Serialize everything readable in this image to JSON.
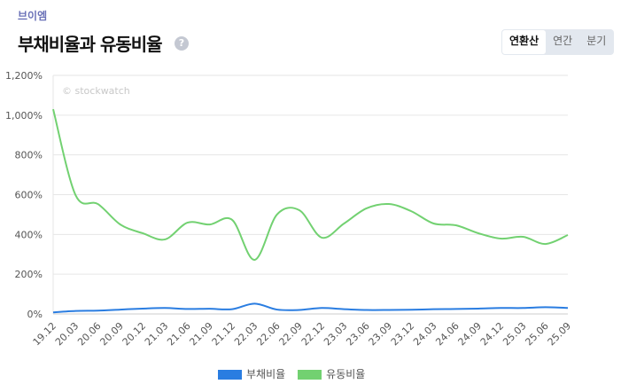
{
  "header": {
    "company": "브이엠",
    "title": "부채비율과 유동비율",
    "help_icon": "?"
  },
  "period_tabs": [
    {
      "label": "연환산",
      "active": true
    },
    {
      "label": "연간",
      "active": false
    },
    {
      "label": "분기",
      "active": false
    }
  ],
  "chart_data": {
    "type": "line",
    "watermark": "© stockwatch",
    "categories": [
      "19.12",
      "20.03",
      "20.06",
      "20.09",
      "20.12",
      "21.03",
      "21.06",
      "21.09",
      "21.12",
      "22.03",
      "22.06",
      "22.09",
      "22.12",
      "23.03",
      "23.06",
      "23.09",
      "23.12",
      "24.03",
      "24.06",
      "24.09",
      "24.12",
      "25.03",
      "25.06",
      "25.09"
    ],
    "ylim": [
      0,
      1200
    ],
    "yticks": [
      0,
      200,
      400,
      600,
      800,
      1000,
      1200
    ],
    "ytick_labels": [
      "0%",
      "200%",
      "400%",
      "600%",
      "800%",
      "1,000%",
      "1,200%"
    ],
    "legend_position": "bottom",
    "series": [
      {
        "name": "부채비율",
        "color": "#2a7de1",
        "values": [
          8,
          15,
          17,
          22,
          27,
          30,
          25,
          26,
          24,
          52,
          22,
          20,
          30,
          24,
          20,
          20,
          21,
          24,
          25,
          27,
          30,
          30,
          34,
          30
        ]
      },
      {
        "name": "유동비율",
        "color": "#72d171",
        "values": [
          1030,
          598,
          553,
          450,
          406,
          375,
          459,
          450,
          473,
          272,
          500,
          522,
          384,
          455,
          531,
          553,
          517,
          455,
          446,
          406,
          379,
          388,
          352,
          397
        ]
      }
    ]
  }
}
